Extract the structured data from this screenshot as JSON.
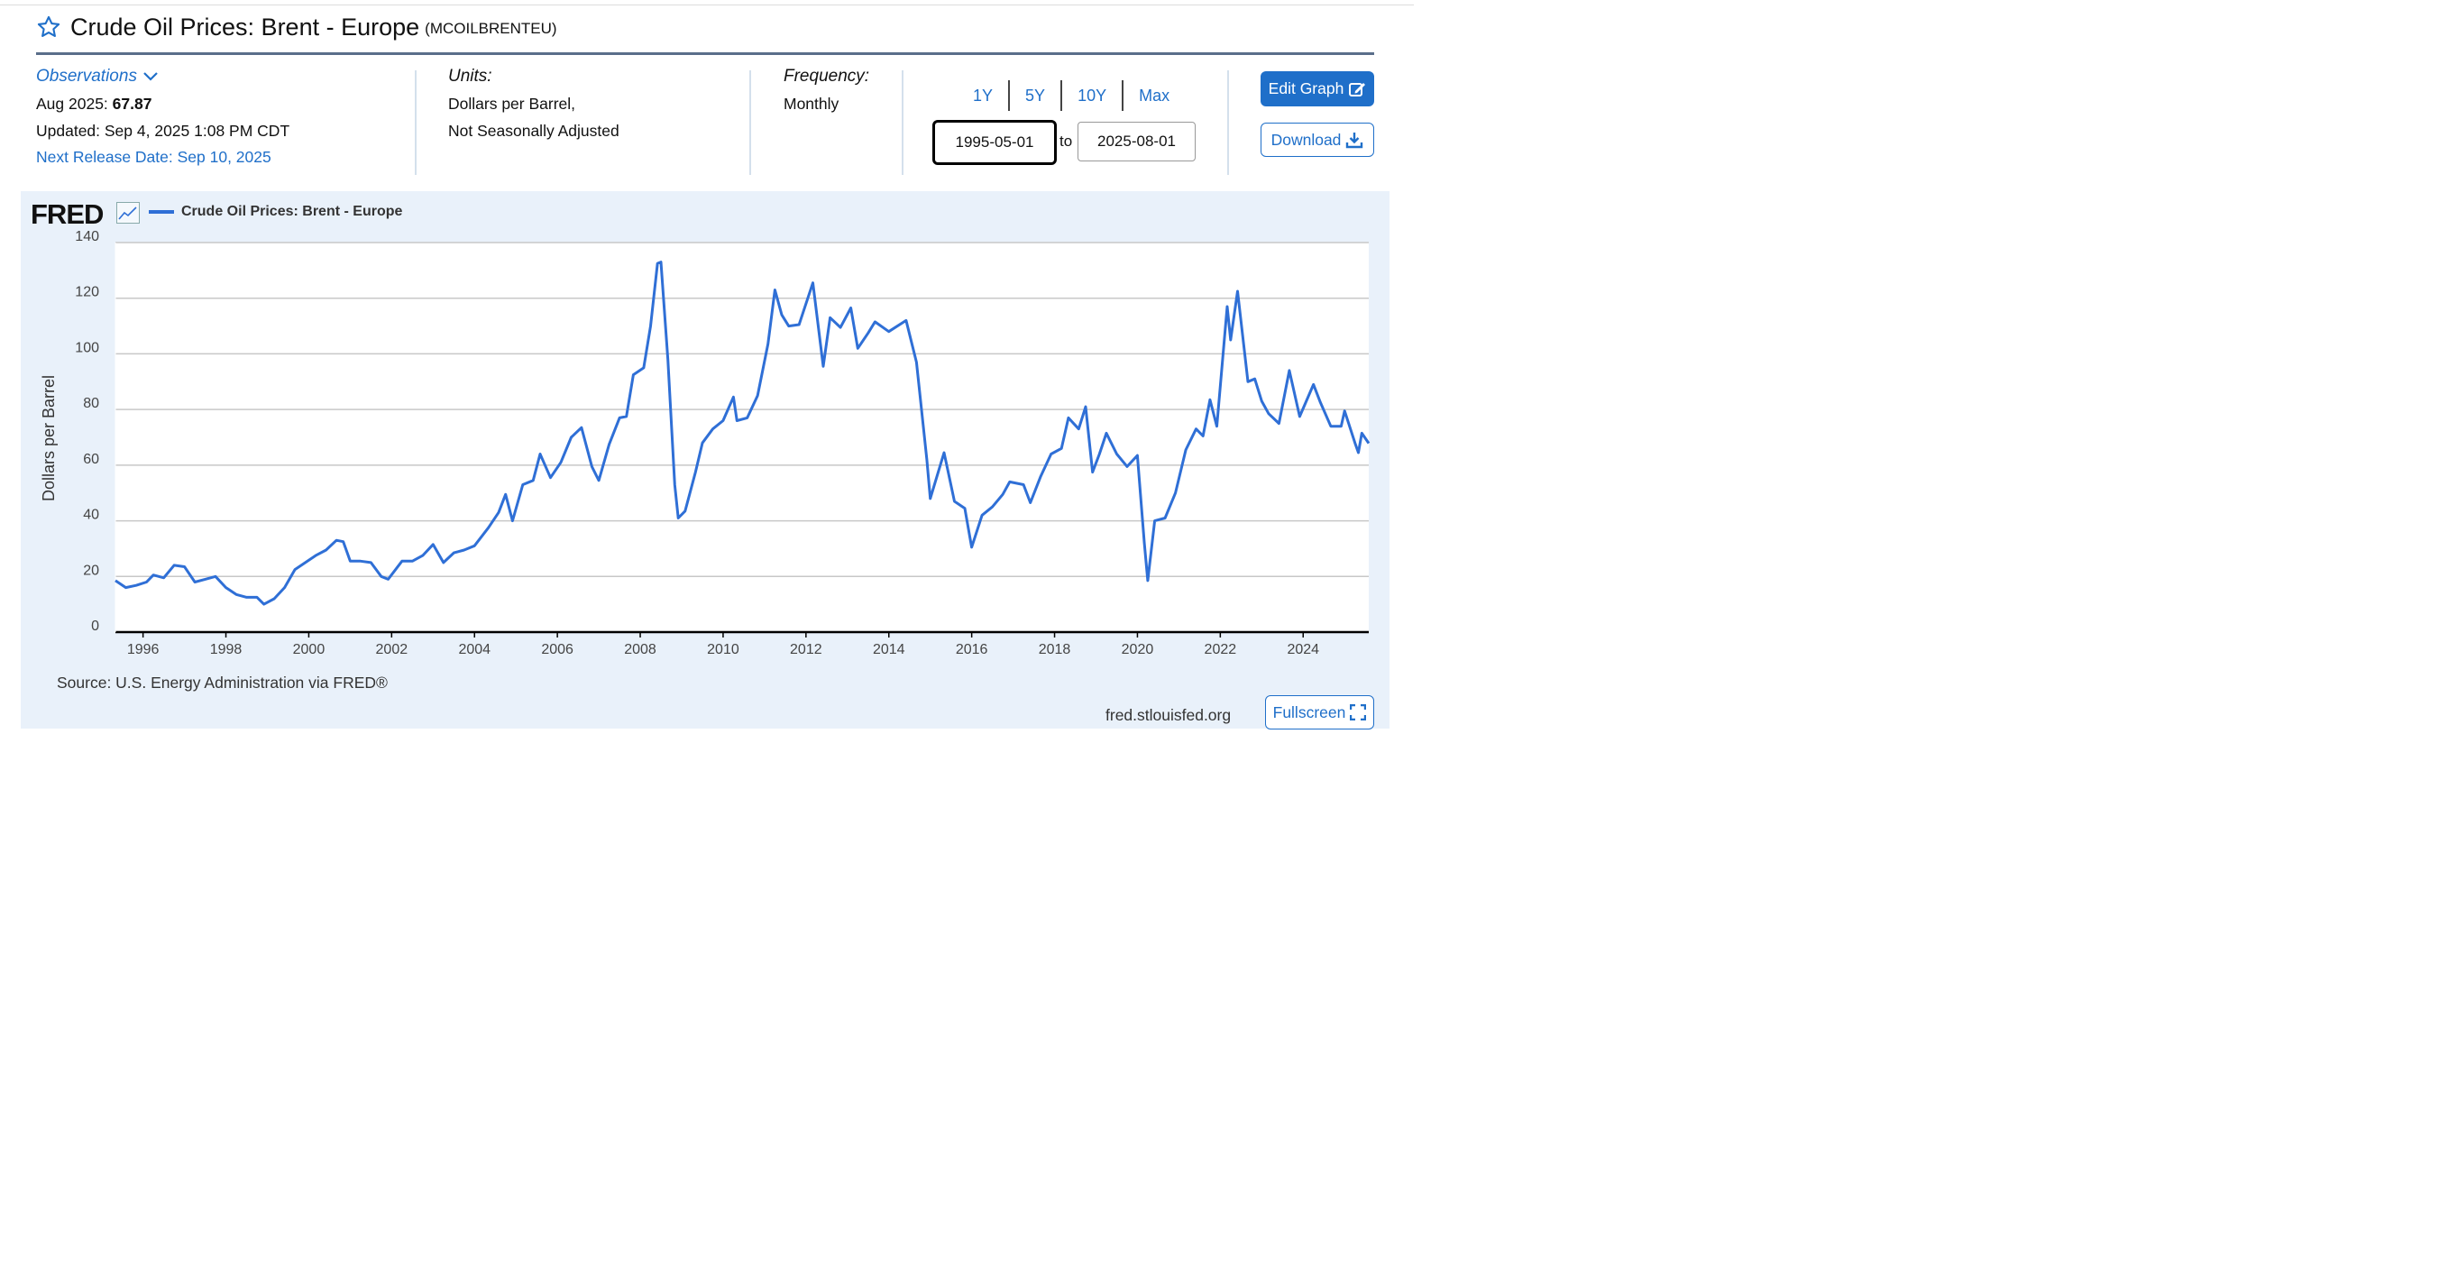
{
  "header": {
    "title": "Crude Oil Prices: Brent - Europe",
    "series_id": "(MCOILBRENTEU)"
  },
  "observations": {
    "link_label": "Observations",
    "period_label": "Aug 2025:",
    "value": "67.87",
    "updated": "Updated: Sep 4, 2025 1:08 PM CDT",
    "next_release": "Next Release Date: Sep 10, 2025"
  },
  "units": {
    "label": "Units:",
    "line1": "Dollars per Barrel,",
    "line2": "Not Seasonally Adjusted"
  },
  "frequency": {
    "label": "Frequency:",
    "value": "Monthly"
  },
  "range": {
    "buttons": [
      "1Y",
      "5Y",
      "10Y",
      "Max"
    ],
    "start": "1995-05-01",
    "to_label": "to",
    "end": "2025-08-01"
  },
  "actions": {
    "edit_label": "Edit Graph",
    "download_label": "Download",
    "fullscreen_label": "Fullscreen"
  },
  "chart_footer": {
    "logo": "FRED",
    "source": "Source: U.S. Energy Administration via FRED®",
    "url": "fred.stlouisfed.org"
  },
  "colors": {
    "accent": "#1f6fc9",
    "series": "#2f6fd6",
    "panel_bg": "#e9f1fa"
  },
  "chart_data": {
    "type": "line",
    "title": "",
    "xlabel": "",
    "ylabel": "Dollars per Barrel",
    "ylim": [
      0,
      140
    ],
    "yticks": [
      0,
      20,
      40,
      60,
      80,
      100,
      120,
      140
    ],
    "xticks": [
      "1996",
      "1998",
      "2000",
      "2002",
      "2004",
      "2006",
      "2008",
      "2010",
      "2012",
      "2014",
      "2016",
      "2018",
      "2020",
      "2022",
      "2024"
    ],
    "x_start": "1995-05",
    "x_end": "2025-08",
    "grid": true,
    "legend": "top-left",
    "series": [
      {
        "name": "Crude Oil Prices: Brent - Europe",
        "points": [
          [
            "1995-05",
            18.5
          ],
          [
            "1995-08",
            16.0
          ],
          [
            "1995-11",
            16.8
          ],
          [
            "1996-02",
            18.0
          ],
          [
            "1996-04",
            20.5
          ],
          [
            "1996-07",
            19.5
          ],
          [
            "1996-10",
            24.0
          ],
          [
            "1997-01",
            23.5
          ],
          [
            "1997-04",
            18.0
          ],
          [
            "1997-07",
            19.0
          ],
          [
            "1997-10",
            20.0
          ],
          [
            "1998-01",
            16.0
          ],
          [
            "1998-04",
            13.5
          ],
          [
            "1998-07",
            12.5
          ],
          [
            "1998-10",
            12.5
          ],
          [
            "1998-12",
            10.0
          ],
          [
            "1999-03",
            12.0
          ],
          [
            "1999-06",
            16.0
          ],
          [
            "1999-09",
            22.5
          ],
          [
            "1999-12",
            25.0
          ],
          [
            "2000-03",
            27.5
          ],
          [
            "2000-06",
            29.5
          ],
          [
            "2000-09",
            33.0
          ],
          [
            "2000-11",
            32.5
          ],
          [
            "2001-01",
            25.5
          ],
          [
            "2001-04",
            25.5
          ],
          [
            "2001-07",
            25.0
          ],
          [
            "2001-10",
            20.0
          ],
          [
            "2001-12",
            19.0
          ],
          [
            "2002-04",
            25.5
          ],
          [
            "2002-07",
            25.5
          ],
          [
            "2002-10",
            27.5
          ],
          [
            "2003-01",
            31.5
          ],
          [
            "2003-04",
            25.0
          ],
          [
            "2003-07",
            28.5
          ],
          [
            "2003-10",
            29.5
          ],
          [
            "2004-01",
            31.0
          ],
          [
            "2004-05",
            37.5
          ],
          [
            "2004-08",
            43.0
          ],
          [
            "2004-10",
            49.5
          ],
          [
            "2004-12",
            40.0
          ],
          [
            "2005-03",
            53.0
          ],
          [
            "2005-06",
            54.5
          ],
          [
            "2005-08",
            64.0
          ],
          [
            "2005-11",
            55.5
          ],
          [
            "2006-02",
            61.0
          ],
          [
            "2006-05",
            70.0
          ],
          [
            "2006-08",
            73.5
          ],
          [
            "2006-11",
            59.5
          ],
          [
            "2007-01",
            54.5
          ],
          [
            "2007-04",
            67.5
          ],
          [
            "2007-07",
            77.0
          ],
          [
            "2007-09",
            77.5
          ],
          [
            "2007-11",
            92.5
          ],
          [
            "2008-02",
            95.0
          ],
          [
            "2008-04",
            110.0
          ],
          [
            "2008-06",
            132.5
          ],
          [
            "2008-07",
            133.0
          ],
          [
            "2008-09",
            98.0
          ],
          [
            "2008-11",
            53.0
          ],
          [
            "2008-12",
            41.0
          ],
          [
            "2009-02",
            43.5
          ],
          [
            "2009-05",
            57.5
          ],
          [
            "2009-07",
            68.0
          ],
          [
            "2009-10",
            73.0
          ],
          [
            "2010-01",
            76.0
          ],
          [
            "2010-04",
            84.5
          ],
          [
            "2010-05",
            76.0
          ],
          [
            "2010-08",
            77.0
          ],
          [
            "2010-11",
            85.0
          ],
          [
            "2011-02",
            103.5
          ],
          [
            "2011-04",
            123.0
          ],
          [
            "2011-06",
            114.0
          ],
          [
            "2011-08",
            110.0
          ],
          [
            "2011-11",
            110.5
          ],
          [
            "2012-03",
            125.5
          ],
          [
            "2012-06",
            95.5
          ],
          [
            "2012-08",
            113.0
          ],
          [
            "2012-11",
            109.5
          ],
          [
            "2013-02",
            116.5
          ],
          [
            "2013-04",
            102.0
          ],
          [
            "2013-07",
            107.5
          ],
          [
            "2013-09",
            111.5
          ],
          [
            "2014-01",
            108.0
          ],
          [
            "2014-06",
            112.0
          ],
          [
            "2014-09",
            97.0
          ],
          [
            "2014-12",
            62.0
          ],
          [
            "2015-01",
            48.0
          ],
          [
            "2015-05",
            64.5
          ],
          [
            "2015-08",
            47.0
          ],
          [
            "2015-11",
            44.5
          ],
          [
            "2016-01",
            30.5
          ],
          [
            "2016-04",
            42.0
          ],
          [
            "2016-07",
            45.0
          ],
          [
            "2016-10",
            49.5
          ],
          [
            "2016-12",
            54.0
          ],
          [
            "2017-04",
            53.0
          ],
          [
            "2017-06",
            46.5
          ],
          [
            "2017-09",
            56.0
          ],
          [
            "2017-12",
            64.0
          ],
          [
            "2018-03",
            66.0
          ],
          [
            "2018-05",
            77.0
          ],
          [
            "2018-08",
            73.0
          ],
          [
            "2018-10",
            81.0
          ],
          [
            "2018-12",
            57.5
          ],
          [
            "2019-02",
            64.0
          ],
          [
            "2019-04",
            71.5
          ],
          [
            "2019-07",
            64.0
          ],
          [
            "2019-10",
            59.5
          ],
          [
            "2020-01",
            63.5
          ],
          [
            "2020-03",
            32.0
          ],
          [
            "2020-04",
            18.5
          ],
          [
            "2020-06",
            40.0
          ],
          [
            "2020-09",
            41.0
          ],
          [
            "2020-12",
            50.0
          ],
          [
            "2021-03",
            65.5
          ],
          [
            "2021-06",
            73.0
          ],
          [
            "2021-08",
            70.5
          ],
          [
            "2021-10",
            83.5
          ],
          [
            "2021-12",
            74.0
          ],
          [
            "2022-03",
            117.0
          ],
          [
            "2022-04",
            105.0
          ],
          [
            "2022-06",
            122.5
          ],
          [
            "2022-09",
            90.0
          ],
          [
            "2022-11",
            91.0
          ],
          [
            "2023-01",
            83.0
          ],
          [
            "2023-03",
            78.5
          ],
          [
            "2023-06",
            75.0
          ],
          [
            "2023-09",
            94.0
          ],
          [
            "2023-12",
            77.5
          ],
          [
            "2024-04",
            89.0
          ],
          [
            "2024-06",
            82.5
          ],
          [
            "2024-09",
            74.0
          ],
          [
            "2024-12",
            74.0
          ],
          [
            "2025-01",
            79.5
          ],
          [
            "2025-04",
            68.0
          ],
          [
            "2025-05",
            64.5
          ],
          [
            "2025-06",
            71.5
          ],
          [
            "2025-08",
            67.87
          ]
        ]
      }
    ]
  }
}
